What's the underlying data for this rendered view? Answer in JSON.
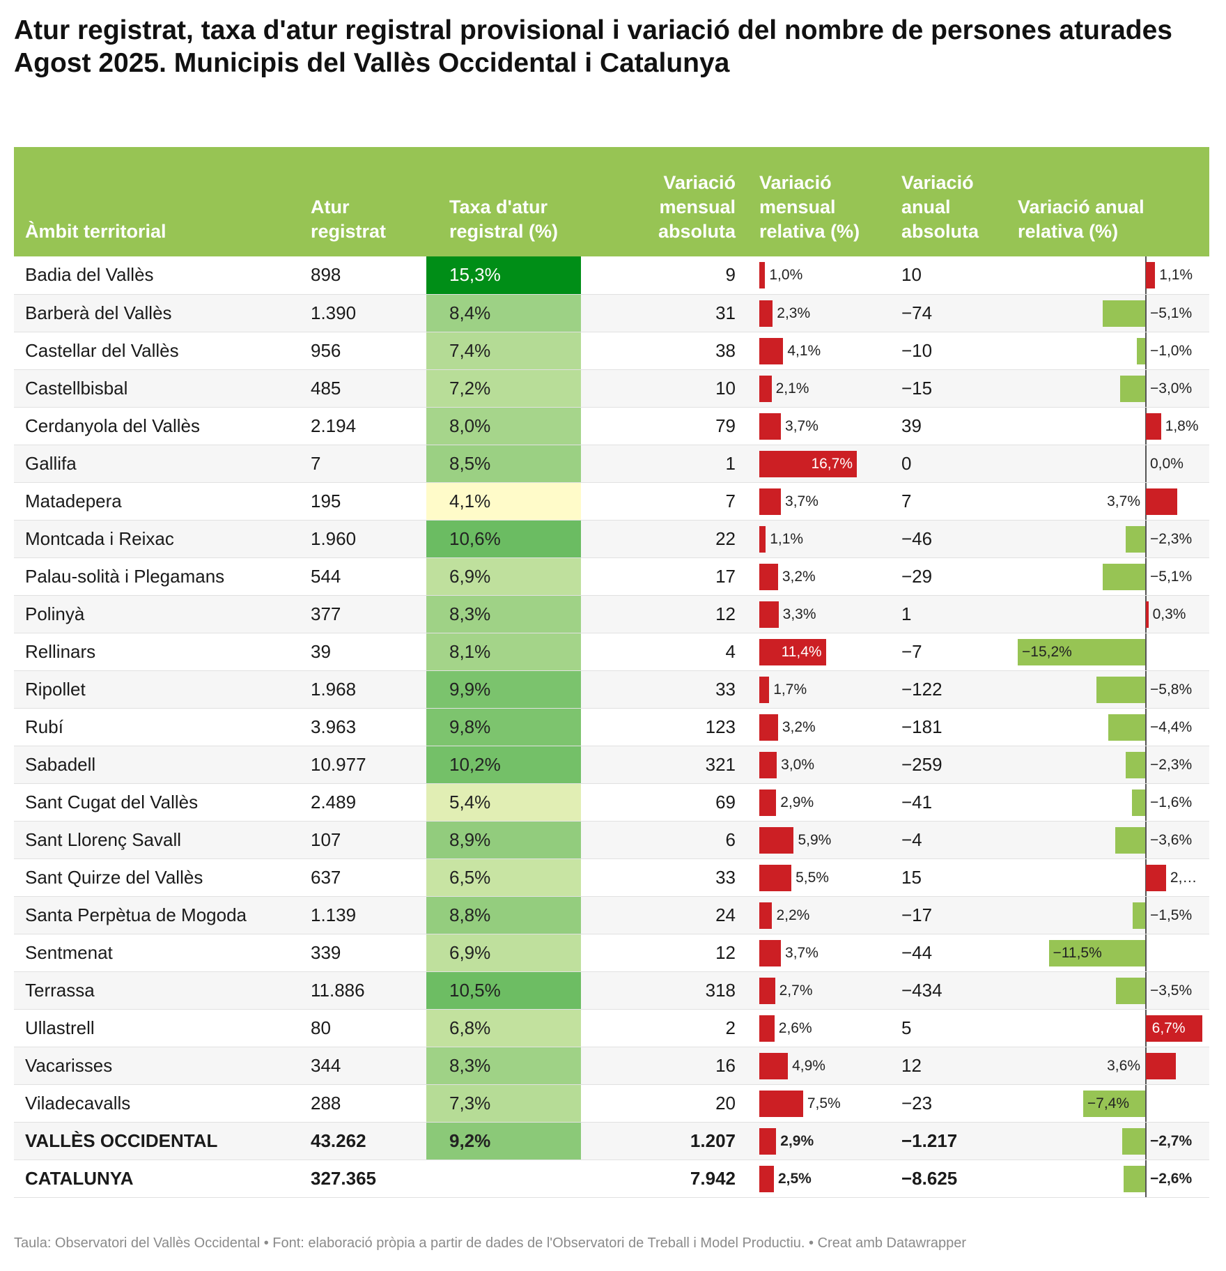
{
  "title_lines": [
    "Atur registrat, taxa d'atur registral provisional i variació del nombre de persones aturades",
    "Agost 2025. Municipis del Vallès Occidental i Catalunya"
  ],
  "columns": [
    "Àmbit territorial",
    "Atur registrat",
    "Taxa d'atur registral (%)",
    "Variació mensual absoluta",
    "Variació mensual relativa (%)",
    "Variació anual absoluta",
    "Variació anual relativa (%)"
  ],
  "colors": {
    "header": "#97c454",
    "positive_bar": "#cc1f24",
    "negative_bar": "#97c454",
    "rate_low": "#fffbc9",
    "rate_high": "#008e17"
  },
  "chart_data": {
    "type": "table",
    "rows": [
      {
        "name": "Badia del Vallès",
        "atur": "898",
        "taxa": 15.3,
        "taxa_label": "15,3%",
        "vm_abs": "9",
        "vm_rel": 1.0,
        "vm_rel_label": "1,0%",
        "va_abs": "10",
        "va_rel": 1.1,
        "va_rel_label": "1,1%"
      },
      {
        "name": "Barberà del Vallès",
        "atur": "1.390",
        "taxa": 8.4,
        "taxa_label": "8,4%",
        "vm_abs": "31",
        "vm_rel": 2.3,
        "vm_rel_label": "2,3%",
        "va_abs": "−74",
        "va_rel": -5.1,
        "va_rel_label": "−5,1%"
      },
      {
        "name": "Castellar del Vallès",
        "atur": "956",
        "taxa": 7.4,
        "taxa_label": "7,4%",
        "vm_abs": "38",
        "vm_rel": 4.1,
        "vm_rel_label": "4,1%",
        "va_abs": "−10",
        "va_rel": -1.0,
        "va_rel_label": "−1,0%"
      },
      {
        "name": "Castellbisbal",
        "atur": "485",
        "taxa": 7.2,
        "taxa_label": "7,2%",
        "vm_abs": "10",
        "vm_rel": 2.1,
        "vm_rel_label": "2,1%",
        "va_abs": "−15",
        "va_rel": -3.0,
        "va_rel_label": "−3,0%"
      },
      {
        "name": "Cerdanyola del Vallès",
        "atur": "2.194",
        "taxa": 8.0,
        "taxa_label": "8,0%",
        "vm_abs": "79",
        "vm_rel": 3.7,
        "vm_rel_label": "3,7%",
        "va_abs": "39",
        "va_rel": 1.8,
        "va_rel_label": "1,8%"
      },
      {
        "name": "Gallifa",
        "atur": "7",
        "taxa": 8.5,
        "taxa_label": "8,5%",
        "vm_abs": "1",
        "vm_rel": 16.7,
        "vm_rel_label": "16,7%",
        "va_abs": "0",
        "va_rel": 0.0,
        "va_rel_label": "0,0%"
      },
      {
        "name": "Matadepera",
        "atur": "195",
        "taxa": 4.1,
        "taxa_label": "4,1%",
        "vm_abs": "7",
        "vm_rel": 3.7,
        "vm_rel_label": "3,7%",
        "va_abs": "7",
        "va_rel": 3.7,
        "va_rel_label": "3,7%"
      },
      {
        "name": "Montcada i Reixac",
        "atur": "1.960",
        "taxa": 10.6,
        "taxa_label": "10,6%",
        "vm_abs": "22",
        "vm_rel": 1.1,
        "vm_rel_label": "1,1%",
        "va_abs": "−46",
        "va_rel": -2.3,
        "va_rel_label": "−2,3%"
      },
      {
        "name": "Palau-solità i Plegamans",
        "atur": "544",
        "taxa": 6.9,
        "taxa_label": "6,9%",
        "vm_abs": "17",
        "vm_rel": 3.2,
        "vm_rel_label": "3,2%",
        "va_abs": "−29",
        "va_rel": -5.1,
        "va_rel_label": "−5,1%"
      },
      {
        "name": "Polinyà",
        "atur": "377",
        "taxa": 8.3,
        "taxa_label": "8,3%",
        "vm_abs": "12",
        "vm_rel": 3.3,
        "vm_rel_label": "3,3%",
        "va_abs": "1",
        "va_rel": 0.3,
        "va_rel_label": "0,3%"
      },
      {
        "name": "Rellinars",
        "atur": "39",
        "taxa": 8.1,
        "taxa_label": "8,1%",
        "vm_abs": "4",
        "vm_rel": 11.4,
        "vm_rel_label": "11,4%",
        "va_abs": "−7",
        "va_rel": -15.2,
        "va_rel_label": "−15,2%"
      },
      {
        "name": "Ripollet",
        "atur": "1.968",
        "taxa": 9.9,
        "taxa_label": "9,9%",
        "vm_abs": "33",
        "vm_rel": 1.7,
        "vm_rel_label": "1,7%",
        "va_abs": "−122",
        "va_rel": -5.8,
        "va_rel_label": "−5,8%"
      },
      {
        "name": "Rubí",
        "atur": "3.963",
        "taxa": 9.8,
        "taxa_label": "9,8%",
        "vm_abs": "123",
        "vm_rel": 3.2,
        "vm_rel_label": "3,2%",
        "va_abs": "−181",
        "va_rel": -4.4,
        "va_rel_label": "−4,4%"
      },
      {
        "name": "Sabadell",
        "atur": "10.977",
        "taxa": 10.2,
        "taxa_label": "10,2%",
        "vm_abs": "321",
        "vm_rel": 3.0,
        "vm_rel_label": "3,0%",
        "va_abs": "−259",
        "va_rel": -2.3,
        "va_rel_label": "−2,3%"
      },
      {
        "name": "Sant Cugat del Vallès",
        "atur": "2.489",
        "taxa": 5.4,
        "taxa_label": "5,4%",
        "vm_abs": "69",
        "vm_rel": 2.9,
        "vm_rel_label": "2,9%",
        "va_abs": "−41",
        "va_rel": -1.6,
        "va_rel_label": "−1,6%"
      },
      {
        "name": "Sant Llorenç Savall",
        "atur": "107",
        "taxa": 8.9,
        "taxa_label": "8,9%",
        "vm_abs": "6",
        "vm_rel": 5.9,
        "vm_rel_label": "5,9%",
        "va_abs": "−4",
        "va_rel": -3.6,
        "va_rel_label": "−3,6%"
      },
      {
        "name": "Sant Quirze del Vallès",
        "atur": "637",
        "taxa": 6.5,
        "taxa_label": "6,5%",
        "vm_abs": "33",
        "vm_rel": 5.5,
        "vm_rel_label": "5,5%",
        "va_abs": "15",
        "va_rel": 2.4,
        "va_rel_label": "2,…"
      },
      {
        "name": "Santa Perpètua de Mogoda",
        "atur": "1.139",
        "taxa": 8.8,
        "taxa_label": "8,8%",
        "vm_abs": "24",
        "vm_rel": 2.2,
        "vm_rel_label": "2,2%",
        "va_abs": "−17",
        "va_rel": -1.5,
        "va_rel_label": "−1,5%"
      },
      {
        "name": "Sentmenat",
        "atur": "339",
        "taxa": 6.9,
        "taxa_label": "6,9%",
        "vm_abs": "12",
        "vm_rel": 3.7,
        "vm_rel_label": "3,7%",
        "va_abs": "−44",
        "va_rel": -11.5,
        "va_rel_label": "−11,5%"
      },
      {
        "name": "Terrassa",
        "atur": "11.886",
        "taxa": 10.5,
        "taxa_label": "10,5%",
        "vm_abs": "318",
        "vm_rel": 2.7,
        "vm_rel_label": "2,7%",
        "va_abs": "−434",
        "va_rel": -3.5,
        "va_rel_label": "−3,5%"
      },
      {
        "name": "Ullastrell",
        "atur": "80",
        "taxa": 6.8,
        "taxa_label": "6,8%",
        "vm_abs": "2",
        "vm_rel": 2.6,
        "vm_rel_label": "2,6%",
        "va_abs": "5",
        "va_rel": 6.7,
        "va_rel_label": "6,7%"
      },
      {
        "name": "Vacarisses",
        "atur": "344",
        "taxa": 8.3,
        "taxa_label": "8,3%",
        "vm_abs": "16",
        "vm_rel": 4.9,
        "vm_rel_label": "4,9%",
        "va_abs": "12",
        "va_rel": 3.6,
        "va_rel_label": "3,6%"
      },
      {
        "name": "Viladecavalls",
        "atur": "288",
        "taxa": 7.3,
        "taxa_label": "7,3%",
        "vm_abs": "20",
        "vm_rel": 7.5,
        "vm_rel_label": "7,5%",
        "va_abs": "−23",
        "va_rel": -7.4,
        "va_rel_label": "−7,4%"
      },
      {
        "name": "VALLÈS OCCIDENTAL",
        "atur": "43.262",
        "taxa": 9.2,
        "taxa_label": "9,2%",
        "vm_abs": "1.207",
        "vm_rel": 2.9,
        "vm_rel_label": "2,9%",
        "va_abs": "−1.217",
        "va_rel": -2.7,
        "va_rel_label": "−2,7%",
        "total": true
      },
      {
        "name": "CATALUNYA",
        "atur": "327.365",
        "taxa": null,
        "taxa_label": "",
        "vm_abs": "7.942",
        "vm_rel": 2.5,
        "vm_rel_label": "2,5%",
        "va_abs": "−8.625",
        "va_rel": -2.6,
        "va_rel_label": "−2,6%",
        "total": true
      }
    ]
  },
  "footer": "Taula: Observatori del Vallès Occidental • Font: elaboració pròpia a partir de dades de l'Observatori de Treball i Model Productiu. • Creat amb Datawrapper"
}
